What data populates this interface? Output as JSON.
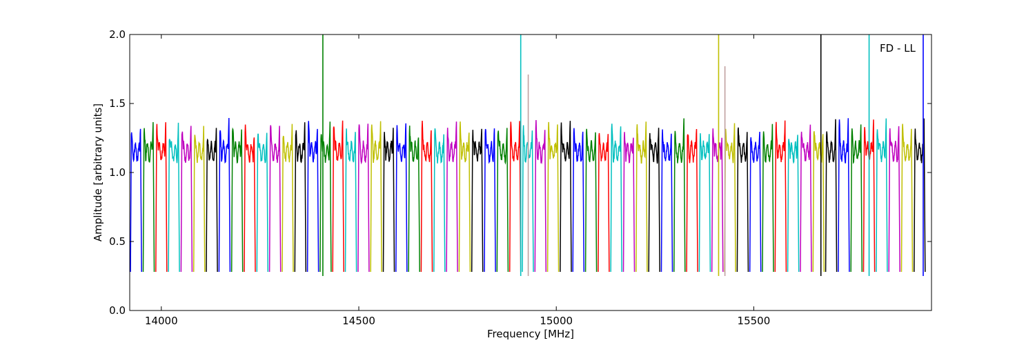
{
  "chart_data": {
    "type": "line",
    "title": "",
    "xlabel": "Frequency [MHz]",
    "ylabel": "Amplitude [arbitrary units]",
    "xlim": [
      13920,
      15950
    ],
    "ylim": [
      0.0,
      2.0
    ],
    "xticks": [
      14000,
      14500,
      15000,
      15500
    ],
    "xtick_labels": [
      "14000",
      "14500",
      "15000",
      "15500"
    ],
    "yticks": [
      0.0,
      0.5,
      1.0,
      1.5,
      2.0
    ],
    "ytick_labels": [
      "0.0",
      "0.5",
      "1.0",
      "1.5",
      "2.0"
    ],
    "annotation": "FD - LL",
    "grid": false,
    "legend": "none",
    "colors": [
      "#0000ff",
      "#008000",
      "#ff0000",
      "#00bfbf",
      "#bf00bf",
      "#bfbf00",
      "#000000"
    ],
    "channel_width_mhz": 32,
    "channel_count": 63,
    "first_channel_start_mhz": 13920,
    "channel_baseline": 1.15,
    "channel_peak": 1.4,
    "channel_dip": 0.28,
    "spikes": [
      {
        "x": 14409,
        "y": 2.0,
        "color": "#008000"
      },
      {
        "x": 14910,
        "y": 2.0,
        "color": "#00bfbf"
      },
      {
        "x": 14929,
        "y": 1.71,
        "color": "#c0a0a0"
      },
      {
        "x": 15411,
        "y": 2.0,
        "color": "#bfbf00"
      },
      {
        "x": 15427,
        "y": 1.77,
        "color": "#c0a0a0"
      },
      {
        "x": 15670,
        "y": 2.0,
        "color": "#000000"
      },
      {
        "x": 15792,
        "y": 2.0,
        "color": "#00bfbf"
      },
      {
        "x": 15929,
        "y": 2.0,
        "color": "#0000ff"
      }
    ]
  }
}
